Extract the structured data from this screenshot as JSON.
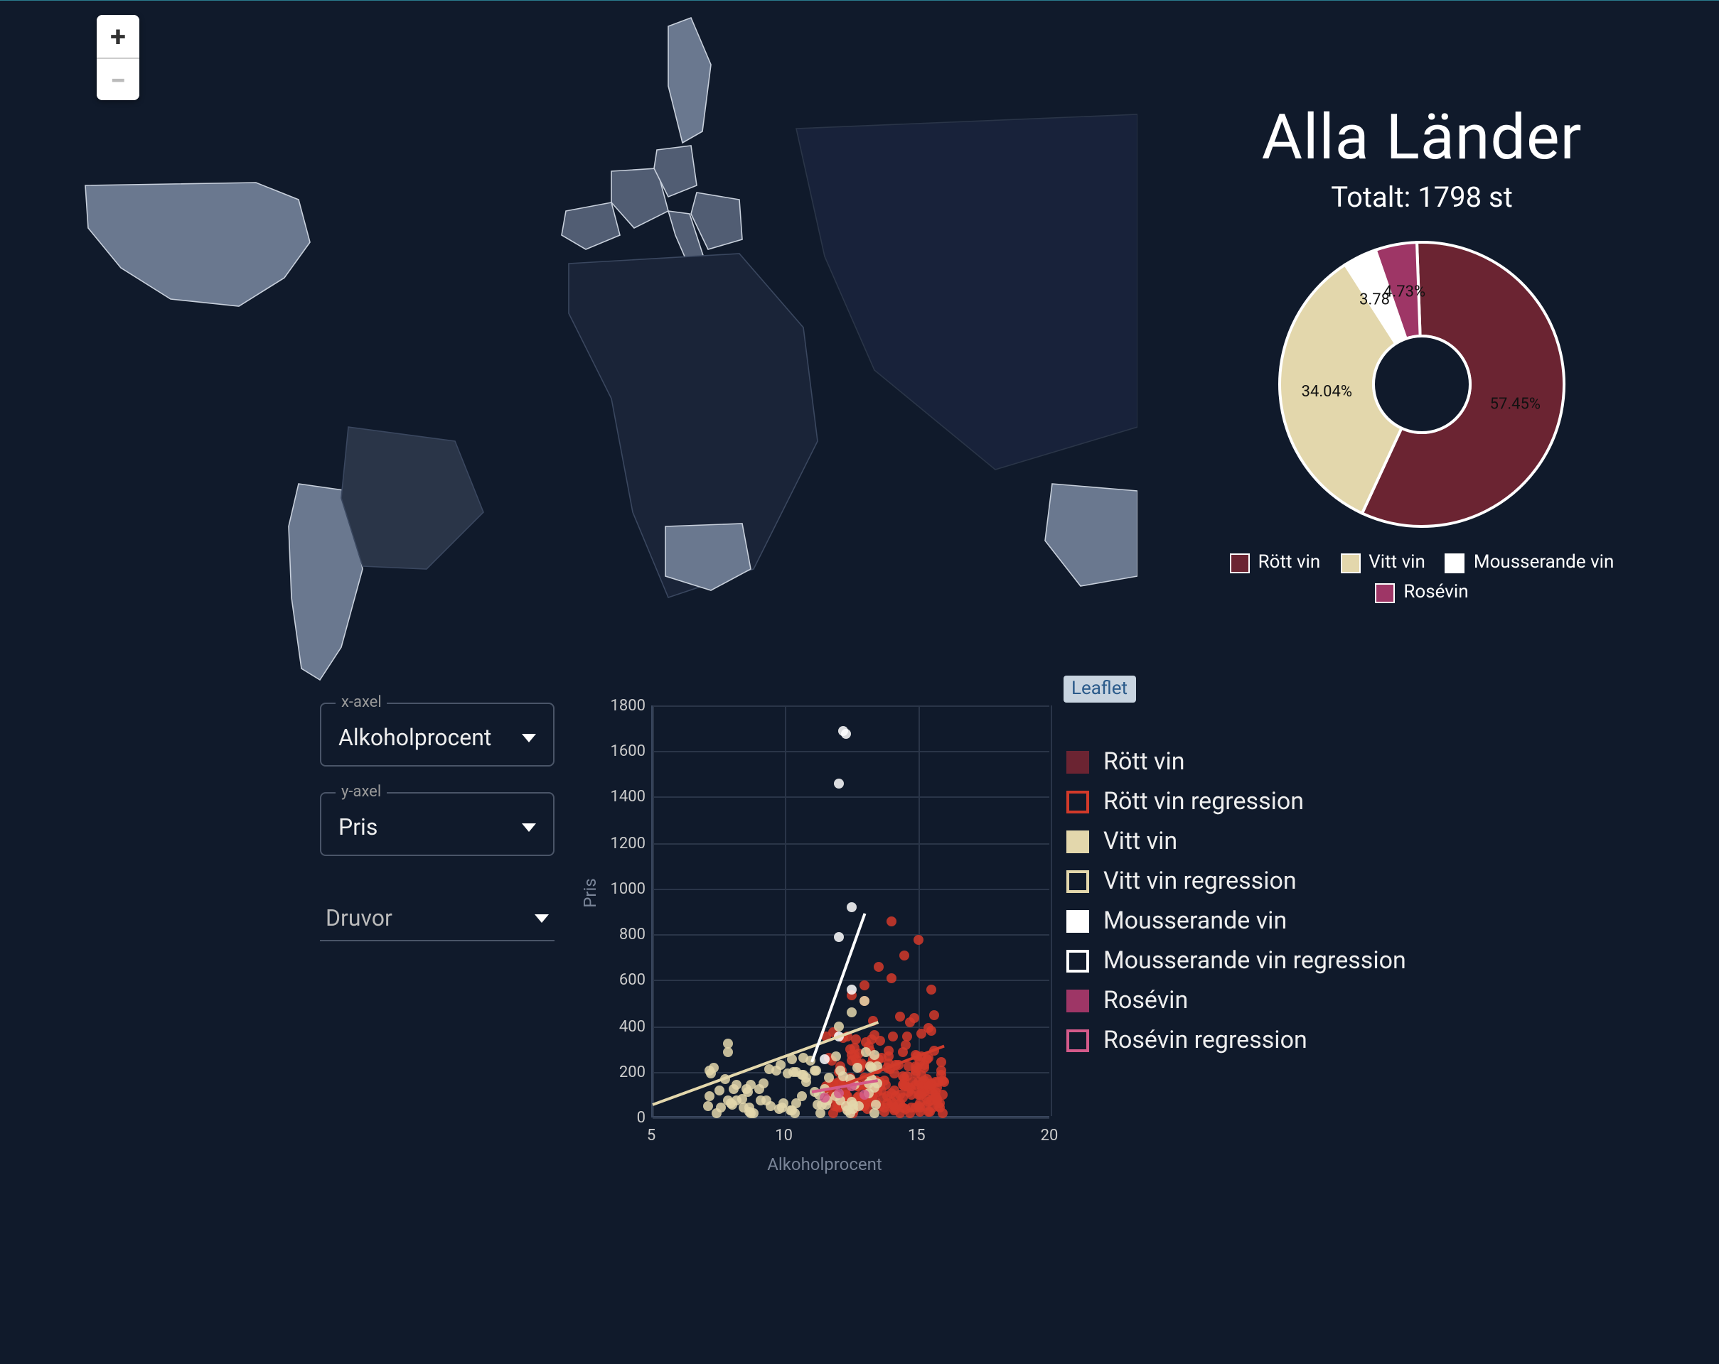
{
  "colors": {
    "bg": "#101a2b",
    "country_fill": "#4f5a6e",
    "country_hi": "#6a788f",
    "country_stroke": "#c8d0dc",
    "grid": "#2a3548",
    "text_muted": "#7a8598"
  },
  "map": {
    "zoom_in": "+",
    "zoom_out": "−",
    "attribution": "Leaflet"
  },
  "header": {
    "title": "Alla Länder",
    "subtitle": "Totalt: 1798 st"
  },
  "donut": {
    "type": "donut",
    "inner_radius_pct": 34,
    "outer_radius_pct": 100,
    "stroke": "#ffffff",
    "stroke_width": 2,
    "slices": [
      {
        "label": "Rött vin",
        "value": 57.45,
        "pct_label": "57.45%",
        "color": "#6b2432"
      },
      {
        "label": "Vitt vin",
        "value": 34.04,
        "pct_label": "34.04%",
        "color": "#e3d7ac"
      },
      {
        "label": "Mousserande vin",
        "value": 3.78,
        "pct_label": "3.78%",
        "color": "#ffffff"
      },
      {
        "label": "Rosévin",
        "value": 4.73,
        "pct_label": "4.73%",
        "color": "#9e3666"
      }
    ],
    "start_angle_deg": -2
  },
  "controls": {
    "x_label": "x-axel",
    "x_value": "Alkoholprocent",
    "y_label": "y-axel",
    "y_value": "Pris",
    "grapes_label": "Druvor"
  },
  "scatter": {
    "type": "scatter",
    "xlabel": "Alkoholprocent",
    "ylabel": "Pris",
    "xlim": [
      5,
      20
    ],
    "xtick_step": 5,
    "ylim": [
      0,
      1800
    ],
    "ytick_step": 200,
    "grid_color": "#2a3548",
    "background_color": "#101a2b",
    "label_fontsize": 12,
    "tick_fontsize": 11,
    "series": [
      {
        "name": "Rött vin",
        "color": "#d23a2a",
        "marker": "circle",
        "size": 7,
        "points_cluster": {
          "x_range": [
            11.5,
            16
          ],
          "y_range": [
            60,
            500
          ],
          "n": 220
        },
        "extra_points": [
          [
            13,
            620
          ],
          [
            13.5,
            700
          ],
          [
            14,
            900
          ],
          [
            14.5,
            750
          ],
          [
            15,
            820
          ],
          [
            13,
            550
          ],
          [
            12.5,
            580
          ],
          [
            15.5,
            600
          ],
          [
            14,
            650
          ]
        ]
      },
      {
        "name": "Vitt vin",
        "color": "#e3d7ac",
        "marker": "circle",
        "size": 7,
        "points_cluster": {
          "x_range": [
            7,
            13.5
          ],
          "y_range": [
            60,
            380
          ],
          "n": 90
        },
        "extra_points": [
          [
            12,
            440
          ],
          [
            12.5,
            500
          ],
          [
            13,
            550
          ]
        ]
      },
      {
        "name": "Mousserande vin",
        "color": "#ffffff",
        "marker": "circle",
        "size": 7,
        "points": [
          [
            12.2,
            1730
          ],
          [
            12.3,
            1720
          ],
          [
            12,
            1500
          ],
          [
            12.5,
            960
          ],
          [
            12,
            830
          ],
          [
            12.5,
            600
          ],
          [
            12,
            400
          ],
          [
            11.5,
            300
          ]
        ]
      },
      {
        "name": "Rosévin",
        "color": "#d45a8a",
        "marker": "circle",
        "size": 7,
        "points": [
          [
            12,
            150
          ],
          [
            12.5,
            180
          ],
          [
            13,
            140
          ],
          [
            11.5,
            130
          ]
        ]
      }
    ],
    "regressions": [
      {
        "name": "Rött vin regression",
        "color": "#d23a2a",
        "p1": [
          11.5,
          120
        ],
        "p2": [
          16,
          320
        ]
      },
      {
        "name": "Vitt vin regression",
        "color": "#e3d7ac",
        "p1": [
          5,
          60
        ],
        "p2": [
          13.5,
          420
        ]
      },
      {
        "name": "Mousserande vin regression",
        "color": "#ffffff",
        "p1": [
          11,
          250
        ],
        "p2": [
          13,
          900
        ]
      },
      {
        "name": "Rosévin regression",
        "color": "#d45a8a",
        "p1": [
          11,
          120
        ],
        "p2": [
          13.5,
          170
        ]
      }
    ],
    "legend": [
      {
        "label": "Rött vin",
        "swatch": "fill",
        "color": "#6b2432"
      },
      {
        "label": "Rött vin regression",
        "swatch": "box",
        "color": "#d23a2a"
      },
      {
        "label": "Vitt vin",
        "swatch": "fill",
        "color": "#e3d7ac"
      },
      {
        "label": "Vitt vin regression",
        "swatch": "box",
        "color": "#e3d7ac"
      },
      {
        "label": "Mousserande vin",
        "swatch": "fill",
        "color": "#ffffff"
      },
      {
        "label": "Mousserande vin regression",
        "swatch": "box",
        "color": "#ffffff"
      },
      {
        "label": "Rosévin",
        "swatch": "fill",
        "color": "#9e3666"
      },
      {
        "label": "Rosévin regression",
        "swatch": "box",
        "color": "#d45a8a"
      }
    ]
  }
}
